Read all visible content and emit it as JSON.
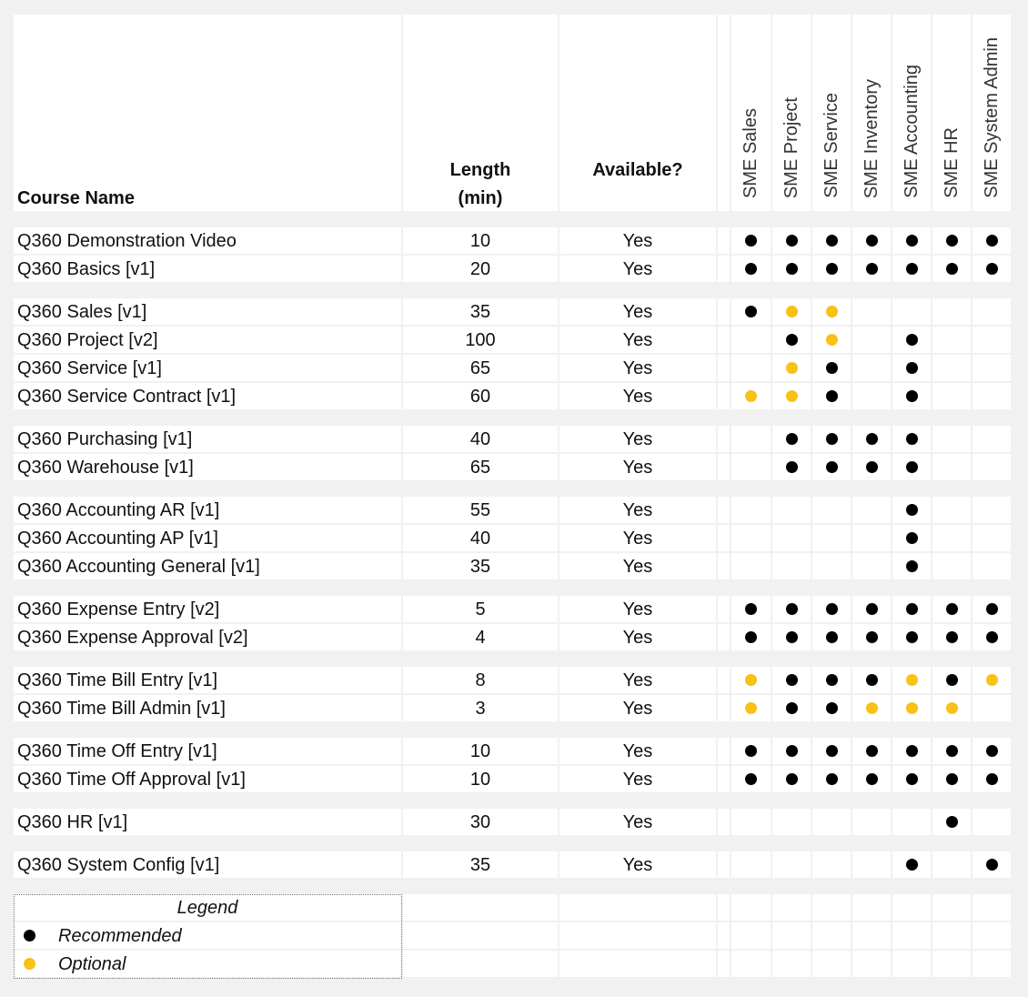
{
  "headers": {
    "course_name": "Course Name",
    "length_line1": "Length",
    "length_line2": "(min)",
    "available": "Available?"
  },
  "roles": [
    "SME Sales",
    "SME Project",
    "SME Service",
    "SME Inventory",
    "SME Accounting",
    "SME HR",
    "SME System Admin"
  ],
  "groups": [
    [
      {
        "name": "Q360 Demonstration Video",
        "length": "10",
        "available": "Yes",
        "dots": [
          "R",
          "R",
          "R",
          "R",
          "R",
          "R",
          "R"
        ]
      },
      {
        "name": "Q360 Basics [v1]",
        "length": "20",
        "available": "Yes",
        "dots": [
          "R",
          "R",
          "R",
          "R",
          "R",
          "R",
          "R"
        ]
      }
    ],
    [
      {
        "name": "Q360 Sales [v1]",
        "length": "35",
        "available": "Yes",
        "dots": [
          "R",
          "O",
          "O",
          "",
          "",
          "",
          ""
        ]
      },
      {
        "name": "Q360 Project [v2]",
        "length": "100",
        "available": "Yes",
        "dots": [
          "",
          "R",
          "O",
          "",
          "R",
          "",
          ""
        ]
      },
      {
        "name": "Q360 Service [v1]",
        "length": "65",
        "available": "Yes",
        "dots": [
          "",
          "O",
          "R",
          "",
          "R",
          "",
          ""
        ]
      },
      {
        "name": "Q360 Service Contract [v1]",
        "length": "60",
        "available": "Yes",
        "dots": [
          "O",
          "O",
          "R",
          "",
          "R",
          "",
          ""
        ]
      }
    ],
    [
      {
        "name": "Q360 Purchasing [v1]",
        "length": "40",
        "available": "Yes",
        "dots": [
          "",
          "R",
          "R",
          "R",
          "R",
          "",
          ""
        ]
      },
      {
        "name": "Q360 Warehouse [v1]",
        "length": "65",
        "available": "Yes",
        "dots": [
          "",
          "R",
          "R",
          "R",
          "R",
          "",
          ""
        ]
      }
    ],
    [
      {
        "name": "Q360 Accounting AR [v1]",
        "length": "55",
        "available": "Yes",
        "dots": [
          "",
          "",
          "",
          "",
          "R",
          "",
          ""
        ]
      },
      {
        "name": "Q360 Accounting AP [v1]",
        "length": "40",
        "available": "Yes",
        "dots": [
          "",
          "",
          "",
          "",
          "R",
          "",
          ""
        ]
      },
      {
        "name": "Q360 Accounting General [v1]",
        "length": "35",
        "available": "Yes",
        "dots": [
          "",
          "",
          "",
          "",
          "R",
          "",
          ""
        ]
      }
    ],
    [
      {
        "name": "Q360 Expense Entry [v2]",
        "length": "5",
        "available": "Yes",
        "dots": [
          "R",
          "R",
          "R",
          "R",
          "R",
          "R",
          "R"
        ]
      },
      {
        "name": "Q360 Expense Approval [v2]",
        "length": "4",
        "available": "Yes",
        "dots": [
          "R",
          "R",
          "R",
          "R",
          "R",
          "R",
          "R"
        ]
      }
    ],
    [
      {
        "name": "Q360 Time Bill Entry [v1]",
        "length": "8",
        "available": "Yes",
        "dots": [
          "O",
          "R",
          "R",
          "R",
          "O",
          "R",
          "O"
        ]
      },
      {
        "name": "Q360 Time Bill Admin [v1]",
        "length": "3",
        "available": "Yes",
        "dots": [
          "O",
          "R",
          "R",
          "O",
          "O",
          "O",
          ""
        ]
      }
    ],
    [
      {
        "name": "Q360 Time Off Entry [v1]",
        "length": "10",
        "available": "Yes",
        "dots": [
          "R",
          "R",
          "R",
          "R",
          "R",
          "R",
          "R"
        ]
      },
      {
        "name": "Q360 Time Off Approval [v1]",
        "length": "10",
        "available": "Yes",
        "dots": [
          "R",
          "R",
          "R",
          "R",
          "R",
          "R",
          "R"
        ]
      }
    ],
    [
      {
        "name": "Q360 HR [v1]",
        "length": "30",
        "available": "Yes",
        "dots": [
          "",
          "",
          "",
          "",
          "",
          "R",
          ""
        ]
      }
    ],
    [
      {
        "name": "Q360 System Config [v1]",
        "length": "35",
        "available": "Yes",
        "dots": [
          "",
          "",
          "",
          "",
          "R",
          "",
          "R"
        ]
      }
    ]
  ],
  "legend": {
    "title": "Legend",
    "recommended": "Recommended",
    "optional": "Optional"
  },
  "colors": {
    "recommended": "#000000",
    "optional": "#f9c115"
  }
}
